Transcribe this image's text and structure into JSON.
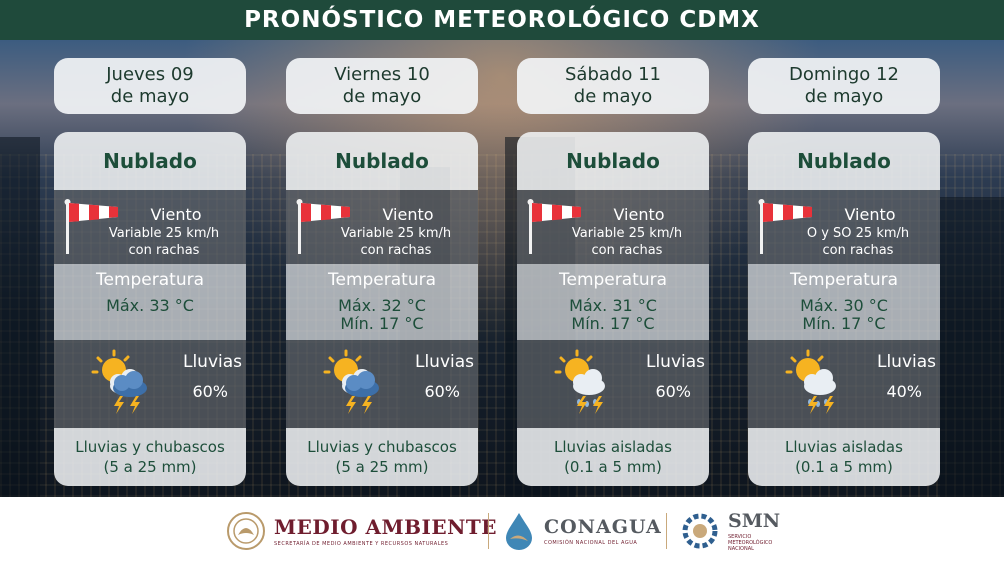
{
  "header": {
    "title": "PRONÓSTICO METEOROLÓGICO CDMX"
  },
  "days": [
    {
      "date_line1": "Jueves 09",
      "date_line2": "de mayo",
      "condition": "Nublado",
      "wind": {
        "title": "Viento",
        "line1": "Variable 25 km/h",
        "line2": "con rachas"
      },
      "temperature": {
        "title": "Temperatura",
        "max": "Máx. 33 °C",
        "min": ""
      },
      "rain": {
        "title": "Lluvias",
        "percent": "60%",
        "icon": "sun-cloud-storm-icon"
      },
      "description": {
        "line1": "Lluvias y chubascos",
        "line2": "(5 a 25 mm)"
      }
    },
    {
      "date_line1": "Viernes 10",
      "date_line2": "de mayo",
      "condition": "Nublado",
      "wind": {
        "title": "Viento",
        "line1": "Variable 25 km/h",
        "line2": "con rachas"
      },
      "temperature": {
        "title": "Temperatura",
        "max": "Máx. 32 °C",
        "min": "Mín. 17 °C"
      },
      "rain": {
        "title": "Lluvias",
        "percent": "60%",
        "icon": "sun-cloud-storm-icon"
      },
      "description": {
        "line1": "Lluvias y chubascos",
        "line2": "(5 a 25 mm)"
      }
    },
    {
      "date_line1": "Sábado 11",
      "date_line2": "de mayo",
      "condition": "Nublado",
      "wind": {
        "title": "Viento",
        "line1": "Variable 25 km/h",
        "line2": "con rachas"
      },
      "temperature": {
        "title": "Temperatura",
        "max": "Máx. 31 °C",
        "min": "Mín. 17 °C"
      },
      "rain": {
        "title": "Lluvias",
        "percent": "60%",
        "icon": "sun-cloud-rain-lightning-icon"
      },
      "description": {
        "line1": "Lluvias aisladas",
        "line2": "(0.1 a 5 mm)"
      }
    },
    {
      "date_line1": "Domingo 12",
      "date_line2": "de mayo",
      "condition": "Nublado",
      "wind": {
        "title": "Viento",
        "line1": "O y SO 25 km/h",
        "line2": "con rachas"
      },
      "temperature": {
        "title": "Temperatura",
        "max": "Máx. 30 °C",
        "min": "Mín. 17 °C"
      },
      "rain": {
        "title": "Lluvias",
        "percent": "40%",
        "icon": "sun-cloud-rain-lightning-icon"
      },
      "description": {
        "line1": "Lluvias aisladas",
        "line2": "(0.1 a 5 mm)"
      }
    }
  ],
  "footer": {
    "medio_ambiente": {
      "title": "MEDIO AMBIENTE",
      "subtitle": "SECRETARÍA DE MEDIO AMBIENTE Y RECURSOS NATURALES"
    },
    "conagua": {
      "title": "CONAGUA",
      "subtitle": "COMISIÓN NACIONAL DEL AGUA"
    },
    "smn": {
      "title": "SMN",
      "subtitle": "SERVICIO METEOROLÓGICO NACIONAL"
    }
  },
  "colors": {
    "header_bg": "#1f4a3b",
    "accent_green": "#1d4e3a",
    "brand_maroon": "#6f1d2e",
    "windsock_red": "#e8323a"
  }
}
